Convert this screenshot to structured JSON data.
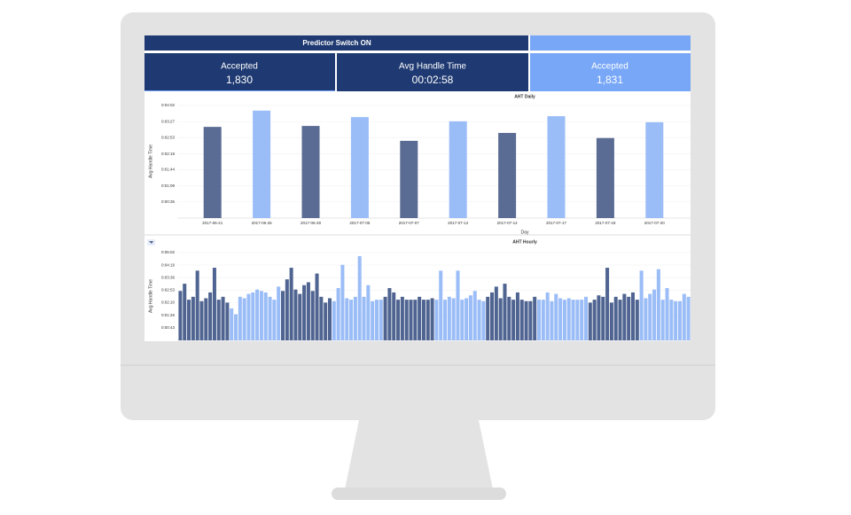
{
  "header": {
    "title": "Predictor Switch ON"
  },
  "cards": [
    {
      "label": "Accepted",
      "value": "1,830"
    },
    {
      "label": "Avg Handle Time",
      "value": "00:02:58"
    },
    {
      "label": "Accepted",
      "value": "1,831"
    }
  ],
  "chart_data": [
    {
      "type": "bar",
      "title": "AHT Daily",
      "x_label": "Day",
      "y_label": "Avg Handle Time",
      "categories": [
        "2017-06-21",
        "2017-06-26",
        "2017-06-28",
        "2017-07-05",
        "2017-07-07",
        "2017-07-12",
        "2017-07-14",
        "2017-07-17",
        "2017-07-18",
        "2017-07-20"
      ],
      "values": [
        196,
        231,
        198,
        217,
        166,
        208,
        183,
        219,
        172,
        206
      ],
      "colors": [
        "#5a6b94",
        "#9bbdf7",
        "#5a6b94",
        "#9bbdf7",
        "#5a6b94",
        "#9bbdf7",
        "#5a6b94",
        "#9bbdf7",
        "#5a6b94",
        "#9bbdf7"
      ],
      "ylim": [
        0,
        242
      ],
      "yticks": [
        {
          "value": 35,
          "label": "0:00:35"
        },
        {
          "value": 69,
          "label": "0:01:09"
        },
        {
          "value": 104,
          "label": "0:01:44"
        },
        {
          "value": 138,
          "label": "0:02:18"
        },
        {
          "value": 173,
          "label": "0:02:53"
        },
        {
          "value": 207,
          "label": "0:03:27"
        },
        {
          "value": 242,
          "label": "0:04:02"
        }
      ],
      "grid": true
    },
    {
      "type": "grouped-bar",
      "title": "AHT Hourly",
      "y_label": "Avg Handle Time",
      "groups": [
        {
          "color": "#4f6491",
          "values": [
            170,
            195,
            140,
            150,
            240,
            135,
            145,
            165,
            250,
            140,
            150,
            130
          ]
        },
        {
          "color": "#9bbdf7",
          "values": [
            110,
            90,
            150,
            145,
            160,
            165,
            175,
            170,
            165,
            150,
            140,
            185
          ]
        },
        {
          "color": "#4f6491",
          "values": [
            170,
            210,
            250,
            175,
            160,
            190,
            200,
            170,
            230,
            150,
            130,
            145
          ]
        },
        {
          "color": "#9bbdf7",
          "values": [
            135,
            180,
            260,
            145,
            140,
            150,
            290,
            150,
            190,
            135,
            140,
            140
          ]
        },
        {
          "color": "#4f6491",
          "values": [
            150,
            180,
            165,
            140,
            150,
            140,
            140,
            140,
            150,
            140,
            140,
            145
          ]
        },
        {
          "color": "#9bbdf7",
          "values": [
            140,
            240,
            140,
            150,
            145,
            240,
            140,
            145,
            155,
            170,
            140,
            135
          ]
        },
        {
          "color": "#4f6491",
          "values": [
            150,
            165,
            185,
            145,
            195,
            150,
            140,
            165,
            140,
            135,
            135,
            150
          ]
        },
        {
          "color": "#9bbdf7",
          "values": [
            140,
            140,
            165,
            135,
            160,
            145,
            140,
            145,
            140,
            140,
            140,
            150
          ]
        },
        {
          "color": "#4f6491",
          "values": [
            130,
            140,
            155,
            150,
            250,
            130,
            150,
            140,
            160,
            150,
            165,
            140
          ]
        },
        {
          "color": "#9bbdf7",
          "values": [
            240,
            145,
            160,
            175,
            245,
            140,
            180,
            140,
            135,
            135,
            160,
            150
          ]
        }
      ],
      "ylim": [
        0,
        302
      ],
      "yticks": [
        {
          "value": 43,
          "label": "0:00:43"
        },
        {
          "value": 86,
          "label": "0:01:26"
        },
        {
          "value": 130,
          "label": "0:02:10"
        },
        {
          "value": 173,
          "label": "0:02:53"
        },
        {
          "value": 216,
          "label": "0:03:36"
        },
        {
          "value": 259,
          "label": "0:04:19"
        },
        {
          "value": 302,
          "label": "0:05:02"
        }
      ],
      "grid": true
    }
  ]
}
